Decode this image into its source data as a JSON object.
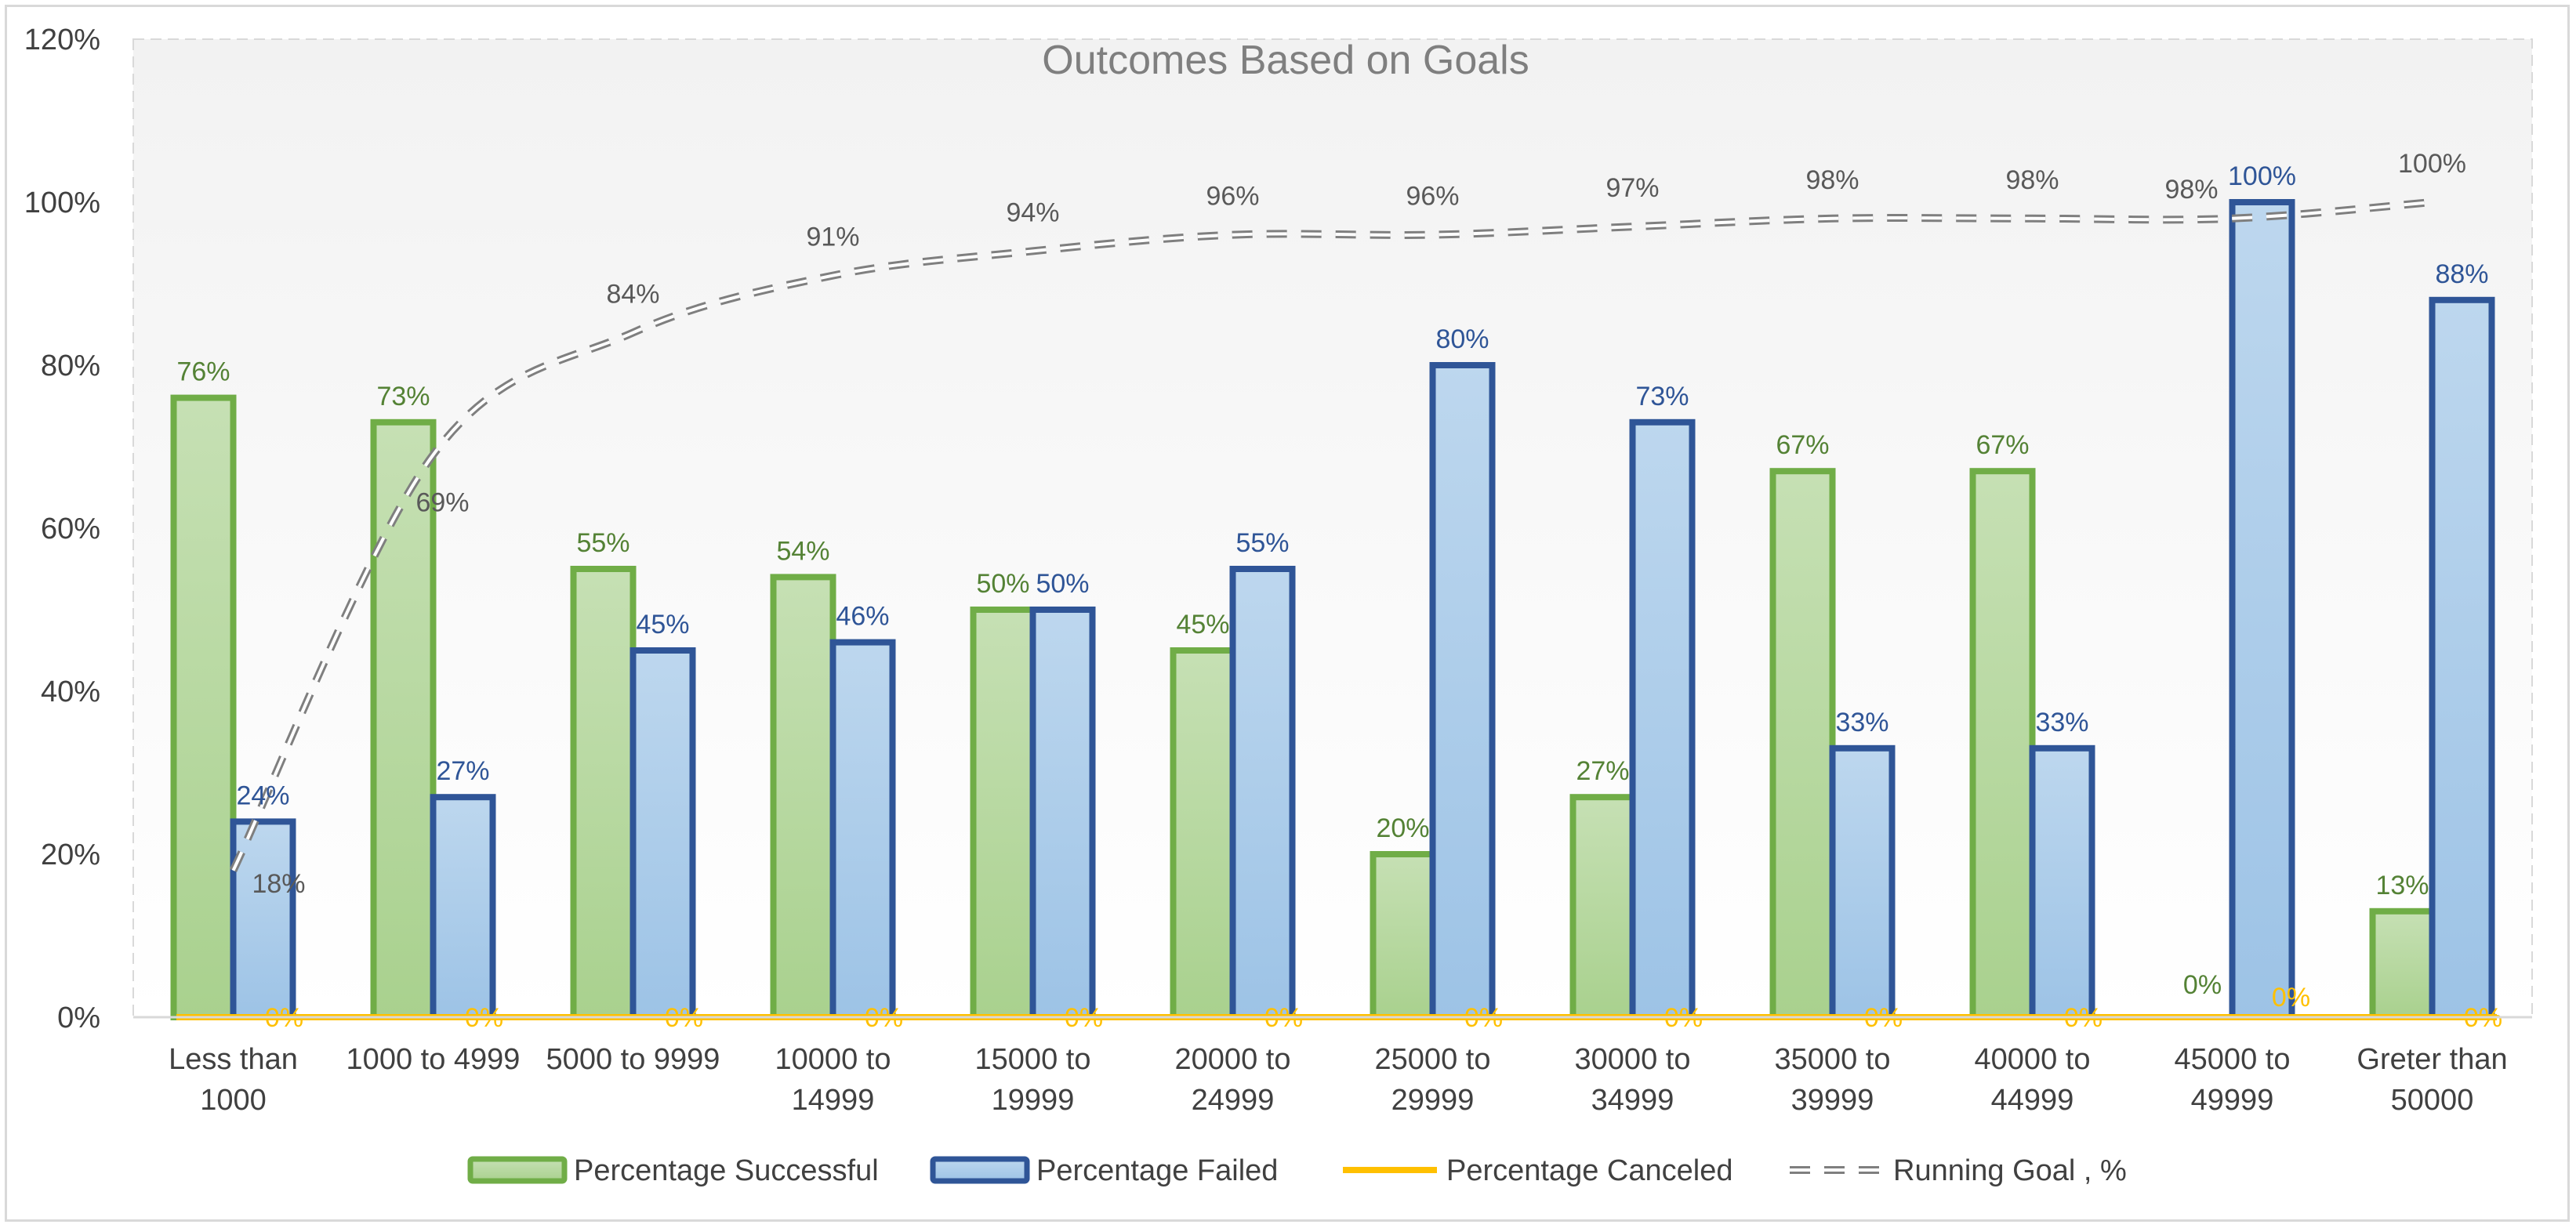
{
  "chart_data": {
    "type": "bar",
    "title": "Outcomes Based on Goals",
    "categories": [
      [
        "Less than",
        "1000"
      ],
      [
        "1000 to 4999"
      ],
      [
        "5000 to 9999"
      ],
      [
        "10000 to",
        "14999"
      ],
      [
        "15000 to",
        "19999"
      ],
      [
        "20000 to",
        "24999"
      ],
      [
        "25000 to",
        "29999"
      ],
      [
        "30000 to",
        "34999"
      ],
      [
        "35000 to",
        "39999"
      ],
      [
        "40000 to",
        "44999"
      ],
      [
        "45000 to",
        "49999"
      ],
      [
        "Greter than",
        "50000"
      ]
    ],
    "series": [
      {
        "name": "Percentage Successful",
        "kind": "bar",
        "values": [
          76,
          73,
          55,
          54,
          50,
          45,
          20,
          27,
          67,
          67,
          0,
          13
        ],
        "labels": [
          "76%",
          "73%",
          "55%",
          "54%",
          "50%",
          "45%",
          "20%",
          "27%",
          "67%",
          "67%",
          "0%",
          "13%"
        ],
        "color": "#70ad47",
        "fill_top": "#c6e0b4",
        "fill_bottom": "#a9d18e",
        "label_color": "#548235"
      },
      {
        "name": "Percentage Failed",
        "kind": "bar",
        "values": [
          24,
          27,
          45,
          46,
          50,
          55,
          80,
          73,
          33,
          33,
          100,
          88
        ],
        "labels": [
          "24%",
          "27%",
          "45%",
          "46%",
          "50%",
          "55%",
          "80%",
          "73%",
          "33%",
          "33%",
          "100%",
          "88%"
        ],
        "color": "#2f5597",
        "fill_top": "#bdd7ee",
        "fill_bottom": "#9dc3e6",
        "label_color": "#2f5597"
      },
      {
        "name": "Percentage Canceled",
        "kind": "line",
        "values": [
          0,
          0,
          0,
          0,
          0,
          0,
          0,
          0,
          0,
          0,
          0,
          0
        ],
        "labels": [
          "0%",
          "0%",
          "0%",
          "0%",
          "0%",
          "0%",
          "0%",
          "0%",
          "0%",
          "0%",
          "0%",
          "0%"
        ],
        "color": "#ffc000",
        "label_color": "#ffc000"
      },
      {
        "name": "Running Goal , %",
        "kind": "dashed-line",
        "values": [
          18,
          69,
          84,
          91,
          94,
          96,
          96,
          97,
          98,
          98,
          98,
          100
        ],
        "labels": [
          "18%",
          "69%",
          "84%",
          "91%",
          "94%",
          "96%",
          "96%",
          "97%",
          "98%",
          "98%",
          "98%",
          "100%"
        ],
        "color": "#7f7f7f",
        "label_color": "#595959"
      }
    ],
    "ylim": [
      0,
      120
    ],
    "yticks": [
      0,
      20,
      40,
      60,
      80,
      100,
      120
    ],
    "ytick_labels": [
      "0%",
      "20%",
      "40%",
      "60%",
      "80%",
      "100%",
      "120%"
    ],
    "xlabel": "",
    "ylabel": "",
    "grid": false,
    "legend_position": "bottom"
  }
}
